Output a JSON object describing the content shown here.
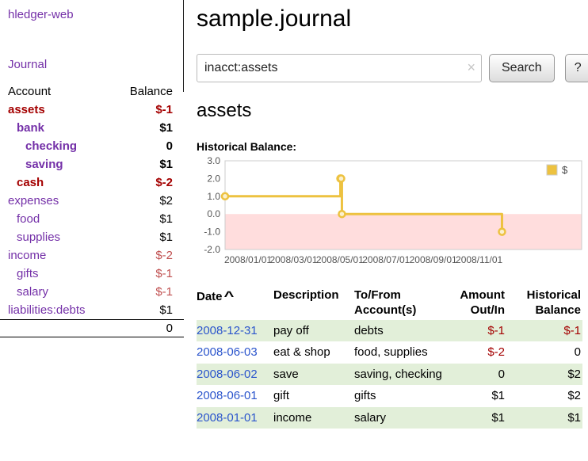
{
  "app": {
    "title": "hledger-web",
    "nav_journal": "Journal"
  },
  "colors": {
    "link_purple": "#7430a8",
    "link_blue": "#2b55cc",
    "negative_red": "#a40000",
    "negative_soft": "#c05050",
    "row_green": "#e2efd9"
  },
  "sidebar": {
    "header": {
      "account": "Account",
      "balance": "Balance"
    },
    "accounts": [
      {
        "name": "assets",
        "balance": "$-1",
        "cell_class": "ind0",
        "name_class": "strong neg",
        "bal_class": "strong neg"
      },
      {
        "name": "bank",
        "balance": "$1",
        "cell_class": "ind1",
        "name_class": "strong",
        "bal_class": "strong"
      },
      {
        "name": "checking",
        "balance": "0",
        "cell_class": "ind2",
        "name_class": "strong",
        "bal_class": "strong"
      },
      {
        "name": "saving",
        "balance": "$1",
        "cell_class": "ind2",
        "name_class": "strong",
        "bal_class": "strong"
      },
      {
        "name": "cash",
        "balance": "$-2",
        "cell_class": "ind1",
        "name_class": "strong neg",
        "bal_class": "strong neg"
      },
      {
        "name": "expenses",
        "balance": "$2",
        "cell_class": "ind0",
        "name_class": "",
        "bal_class": ""
      },
      {
        "name": "food",
        "balance": "$1",
        "cell_class": "ind1",
        "name_class": "",
        "bal_class": ""
      },
      {
        "name": "supplies",
        "balance": "$1",
        "cell_class": "ind1",
        "name_class": "",
        "bal_class": ""
      },
      {
        "name": "income",
        "balance": "$-2",
        "cell_class": "ind0",
        "name_class": "",
        "bal_class": "negsoft"
      },
      {
        "name": "gifts",
        "balance": "$-1",
        "cell_class": "ind1",
        "name_class": "",
        "bal_class": "negsoft"
      },
      {
        "name": "salary",
        "balance": "$-1",
        "cell_class": "ind1",
        "name_class": "",
        "bal_class": "negsoft"
      },
      {
        "name": "liabilities:debts",
        "balance": "$1",
        "cell_class": "ind0",
        "name_class": "",
        "bal_class": ""
      }
    ],
    "total": "0"
  },
  "main": {
    "title": "sample.journal",
    "search": {
      "value": "inacct:assets",
      "clear_icon": "×",
      "button": "Search",
      "help": "?"
    },
    "section_title": "assets",
    "chart_label": "Historical Balance:"
  },
  "chart_data": {
    "type": "line",
    "step": true,
    "title": "Historical Balance of assets",
    "legend": [
      {
        "label": "$",
        "color": "#edc240"
      }
    ],
    "legend_position": "top-right",
    "ylim": [
      -2.0,
      3.0
    ],
    "yticks": [
      3.0,
      2.0,
      1.0,
      0.0,
      -1.0,
      -2.0
    ],
    "xticks": [
      "2008/01/01",
      "2008/03/01",
      "2008/05/01",
      "2008/07/01",
      "2008/09/01",
      "2008/11/01"
    ],
    "x_range": [
      "2008-01-01",
      "2009-04-15"
    ],
    "x_dates": [
      "2008-01-01",
      "2008-06-01",
      "2008-06-02",
      "2008-06-03",
      "2008-12-31"
    ],
    "values": [
      1,
      2,
      2,
      0,
      -1
    ],
    "line_color": "#edc240",
    "marker_fill": "#fbf0ce",
    "negative_region_color": "#ffdddd",
    "grid": false
  },
  "table": {
    "headers": {
      "date": "Date",
      "sort_icon": "^",
      "description": "Description",
      "tofrom_1": "To/From",
      "tofrom_2": "Account(s)",
      "amount_1": "Amount",
      "amount_2": "Out/In",
      "hist_1": "Historical",
      "hist_2": "Balance"
    },
    "rows": [
      {
        "date": "2008-12-31",
        "description": "pay off",
        "accounts": "debts",
        "amount": "$-1",
        "amount_class": "neg",
        "historical": "$-1",
        "historical_class": "neg",
        "row_class": "shade"
      },
      {
        "date": "2008-06-03",
        "description": "eat & shop",
        "accounts": "food, supplies",
        "amount": "$-2",
        "amount_class": "neg",
        "historical": "0",
        "historical_class": "",
        "row_class": ""
      },
      {
        "date": "2008-06-02",
        "description": "save",
        "accounts": "saving, checking",
        "amount": "0",
        "amount_class": "",
        "historical": "$2",
        "historical_class": "",
        "row_class": "shade"
      },
      {
        "date": "2008-06-01",
        "description": "gift",
        "accounts": "gifts",
        "amount": "$1",
        "amount_class": "",
        "historical": "$2",
        "historical_class": "",
        "row_class": ""
      },
      {
        "date": "2008-01-01",
        "description": "income",
        "accounts": "salary",
        "amount": "$1",
        "amount_class": "",
        "historical": "$1",
        "historical_class": "",
        "row_class": "shade"
      }
    ]
  }
}
